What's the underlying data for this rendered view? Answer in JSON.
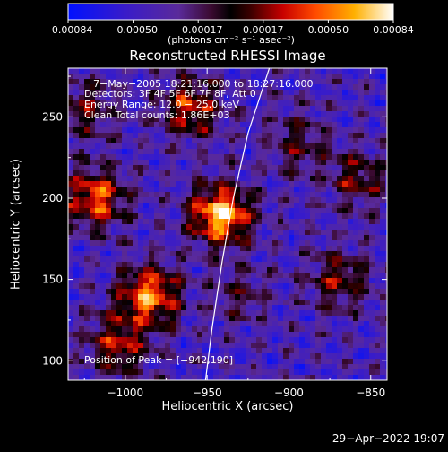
{
  "chart_data": {
    "type": "heatmap",
    "title": "Reconstructed RHESSI Image",
    "xlabel": "Heliocentric X (arcsec)",
    "ylabel": "Heliocentric Y (arcsec)",
    "xlim": [
      -1035,
      -840
    ],
    "ylim": [
      88,
      280
    ],
    "xticks": [
      -1000,
      -950,
      -900,
      -850
    ],
    "xtick_labels": [
      "−1000",
      "−950",
      "−900",
      "−850"
    ],
    "yticks": [
      100,
      150,
      200,
      250
    ],
    "ytick_labels": [
      "100",
      "150",
      "200",
      "250"
    ],
    "colorbar": {
      "range": [
        -0.00084,
        0.00084
      ],
      "tick_labels": [
        "−0.00084",
        "−0.00050",
        "−0.00017",
        "0.00017",
        "0.00050",
        "0.00084"
      ],
      "unit_label": "(photons cm⁻² s⁻¹ asec⁻²)"
    },
    "annotations": [
      "7−May−2005 18:21:16.000 to 18:27:16.000",
      "Detectors: 3F 4F 5F 6F 7F 8F, Att 0",
      "Energy Range: 12.0 − 25.0 keV",
      "Clean    Total counts: 1.86E+03"
    ],
    "peak_label": "Position of Peak = [−942,190]",
    "peak": [
      -942,
      190
    ],
    "sources": [
      {
        "x": -942,
        "y": 190,
        "value": 0.00084
      },
      {
        "x": -985,
        "y": 140,
        "value": 0.0007
      },
      {
        "x": -1018,
        "y": 200,
        "value": 0.00062
      },
      {
        "x": -960,
        "y": 255,
        "value": 0.00052
      },
      {
        "x": -1005,
        "y": 110,
        "value": 0.00048
      },
      {
        "x": -870,
        "y": 150,
        "value": 0.0004
      },
      {
        "x": -858,
        "y": 212,
        "value": 0.00036
      },
      {
        "x": -895,
        "y": 235,
        "value": 0.0003
      },
      {
        "x": -1025,
        "y": 255,
        "value": 0.00034
      },
      {
        "x": -930,
        "y": 140,
        "value": 0.00022
      }
    ],
    "limb": [
      [
        -912,
        280
      ],
      [
        -925,
        240
      ],
      [
        -934,
        200
      ],
      [
        -941,
        160
      ],
      [
        -947,
        120
      ],
      [
        -951,
        88
      ]
    ]
  },
  "footer": {
    "timestamp": "29−Apr−2022 19:07"
  }
}
